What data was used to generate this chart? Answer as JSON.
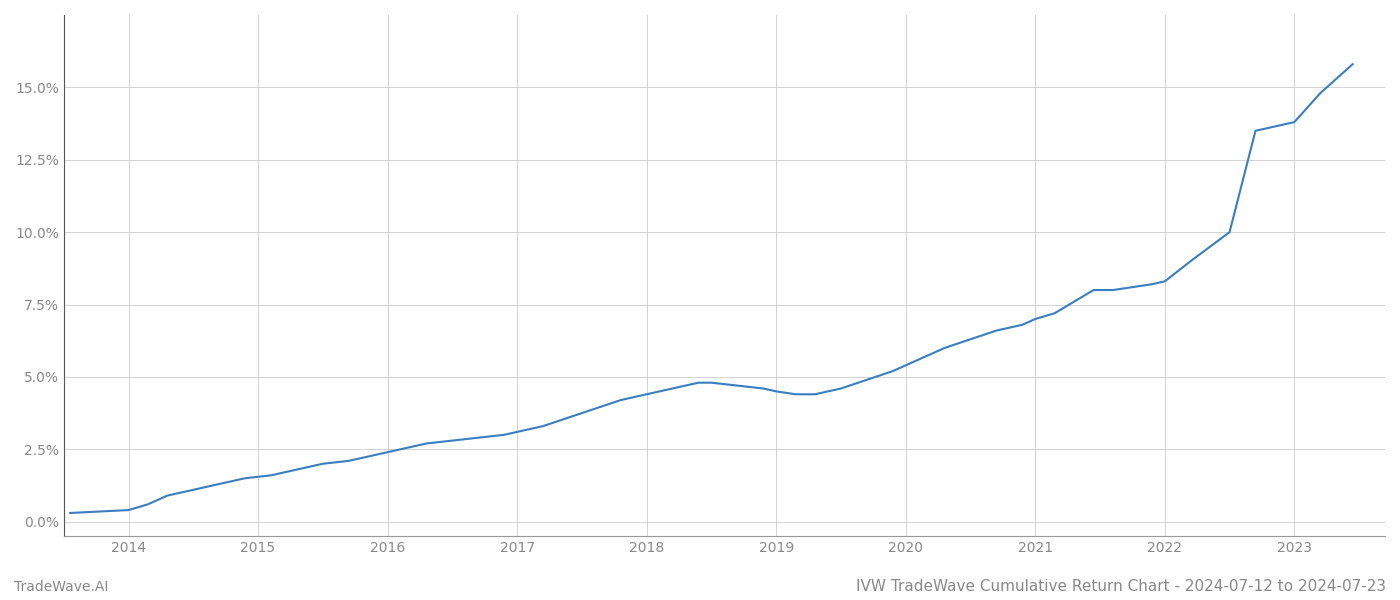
{
  "title": "IVW TradeWave Cumulative Return Chart - 2024-07-12 to 2024-07-23",
  "watermark": "TradeWave.AI",
  "line_color": "#3a7ebf",
  "background_color": "#ffffff",
  "grid_color": "#cccccc",
  "x_years": [
    2014,
    2015,
    2016,
    2017,
    2018,
    2019,
    2020,
    2021,
    2022,
    2023
  ],
  "x_values": [
    2013.55,
    2014.0,
    2014.15,
    2014.3,
    2014.5,
    2014.7,
    2014.9,
    2015.1,
    2015.3,
    2015.5,
    2015.7,
    2015.9,
    2016.1,
    2016.3,
    2016.5,
    2016.7,
    2016.9,
    2017.0,
    2017.2,
    2017.4,
    2017.6,
    2017.8,
    2018.0,
    2018.2,
    2018.4,
    2018.5,
    2018.7,
    2018.9,
    2019.0,
    2019.15,
    2019.3,
    2019.5,
    2019.7,
    2019.9,
    2020.1,
    2020.3,
    2020.5,
    2020.7,
    2020.9,
    2021.0,
    2021.15,
    2021.3,
    2021.45,
    2021.6,
    2021.75,
    2021.9,
    2022.0,
    2022.2,
    2022.5,
    2022.7,
    2023.0,
    2023.2,
    2023.45
  ],
  "y_values": [
    0.003,
    0.004,
    0.006,
    0.009,
    0.011,
    0.013,
    0.015,
    0.016,
    0.018,
    0.02,
    0.021,
    0.023,
    0.025,
    0.027,
    0.028,
    0.029,
    0.03,
    0.031,
    0.033,
    0.036,
    0.039,
    0.042,
    0.044,
    0.046,
    0.048,
    0.048,
    0.047,
    0.046,
    0.045,
    0.044,
    0.044,
    0.046,
    0.049,
    0.052,
    0.056,
    0.06,
    0.063,
    0.066,
    0.068,
    0.07,
    0.072,
    0.076,
    0.08,
    0.08,
    0.081,
    0.082,
    0.083,
    0.09,
    0.1,
    0.135,
    0.138,
    0.148,
    0.158
  ],
  "ylim": [
    -0.005,
    0.175
  ],
  "xlim": [
    2013.5,
    2023.7
  ],
  "yticks": [
    0.0,
    0.025,
    0.05,
    0.075,
    0.1,
    0.125,
    0.15
  ],
  "ytick_labels": [
    "0.0%",
    "2.5%",
    "5.0%",
    "7.5%",
    "10.0%",
    "12.5%",
    "15.0%"
  ],
  "line_width": 1.5,
  "title_fontsize": 11,
  "tick_fontsize": 10,
  "watermark_fontsize": 10,
  "left_spine_color": "#555555",
  "bottom_spine_color": "#999999"
}
